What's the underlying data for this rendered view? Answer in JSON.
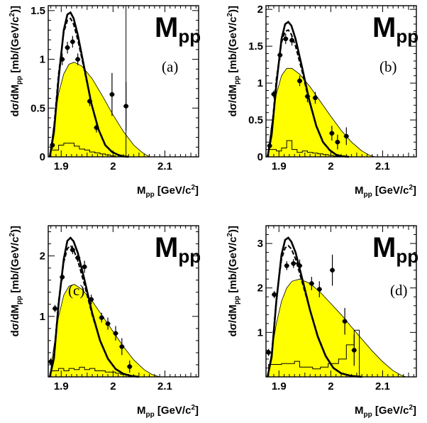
{
  "figure": {
    "panel_title_main": "M",
    "panel_title_sub": "pp",
    "xlabel_pre": "M",
    "xlabel_sub": "pp",
    "xlabel_post": " [GeV/c",
    "xlabel_sup": "2",
    "xlabel_end": "]",
    "ylabel_pre": "dσ/dM",
    "ylabel_sub": "pp",
    "ylabel_post": " [mb/(GeV/c",
    "ylabel_sup": "2",
    "ylabel_end": ")]",
    "colors": {
      "phase_space_fill": "#ffff00",
      "curves": "#000000",
      "background": "#ffffff"
    }
  },
  "chart_data": [
    {
      "type": "line",
      "panel_label": "(a)",
      "xlim": [
        1.875,
        2.165
      ],
      "ylim": [
        0,
        1.55
      ],
      "xticks": [
        1.9,
        2.0,
        2.1
      ],
      "xtick_labels": [
        "1.9",
        "2",
        "2.1"
      ],
      "yticks": [
        0,
        0.5,
        1,
        1.5
      ],
      "ytick_labels": [
        "0",
        "0.5",
        "1",
        "1.5"
      ],
      "vertical_line_x": 2.025,
      "series": [
        {
          "style": "solid",
          "x": [
            1.878,
            1.886,
            1.895,
            1.905,
            1.912,
            1.918,
            1.924,
            1.932,
            1.945,
            1.958,
            1.972,
            1.985,
            1.998,
            2.01,
            2.02,
            2.03
          ],
          "y": [
            0,
            0.25,
            0.8,
            1.3,
            1.46,
            1.48,
            1.42,
            1.25,
            0.9,
            0.55,
            0.28,
            0.12,
            0.05,
            0.02,
            0.005,
            0
          ]
        },
        {
          "style": "dashed",
          "x": [
            1.878,
            1.886,
            1.895,
            1.905,
            1.912,
            1.918,
            1.924,
            1.932,
            1.945,
            1.958,
            1.972,
            1.985,
            1.998,
            2.01,
            2.02,
            2.03
          ],
          "y": [
            0,
            0.3,
            0.85,
            1.28,
            1.4,
            1.42,
            1.36,
            1.2,
            0.88,
            0.55,
            0.28,
            0.12,
            0.05,
            0.02,
            0.005,
            0
          ]
        },
        {
          "style": "filled",
          "x": [
            1.878,
            1.885,
            1.895,
            1.905,
            1.915,
            1.925,
            1.94,
            1.96,
            1.98,
            2.0,
            2.02,
            2.04,
            2.055,
            2.065,
            2.072
          ],
          "y": [
            0,
            0.3,
            0.65,
            0.85,
            0.95,
            0.97,
            0.93,
            0.8,
            0.62,
            0.43,
            0.26,
            0.12,
            0.05,
            0.015,
            0
          ]
        }
      ],
      "points": [
        {
          "x": 1.883,
          "y": 0.12,
          "xerr": 0.005,
          "yerr": 0.04
        },
        {
          "x": 1.902,
          "y": 1.0,
          "xerr": 0.005,
          "yerr": 0.06
        },
        {
          "x": 1.912,
          "y": 1.12,
          "xerr": 0.005,
          "yerr": 0.06
        },
        {
          "x": 1.922,
          "y": 1.18,
          "xerr": 0.005,
          "yerr": 0.06
        },
        {
          "x": 1.932,
          "y": 1.0,
          "xerr": 0.005,
          "yerr": 0.06
        },
        {
          "x": 1.955,
          "y": 0.57,
          "xerr": 0.005,
          "yerr": 0.05
        },
        {
          "x": 1.968,
          "y": 0.3,
          "xerr": 0.005,
          "yerr": 0.05
        },
        {
          "x": 1.998,
          "y": 0.64,
          "xerr": 0.005,
          "yerr": 0.22
        },
        {
          "x": 2.025,
          "y": 0.52,
          "xerr": 0.005,
          "yerr": 0.25
        }
      ],
      "histogram": {
        "edges": [
          1.88,
          1.895,
          1.905,
          1.915,
          1.925,
          1.935,
          1.945,
          1.955,
          1.965,
          1.975,
          1.985,
          1.995,
          2.005,
          2.015
        ],
        "values": [
          0.07,
          0.12,
          0.14,
          0.14,
          0.11,
          0.08,
          0.07,
          0.05,
          0.04,
          0.03,
          0.02,
          0.01,
          0
        ]
      }
    },
    {
      "type": "line",
      "panel_label": "(b)",
      "xlim": [
        1.875,
        2.165
      ],
      "ylim": [
        0,
        2.05
      ],
      "xticks": [
        1.9,
        2.0,
        2.1
      ],
      "xtick_labels": [
        "1.9",
        "2",
        "2.1"
      ],
      "yticks": [
        0,
        0.5,
        1,
        1.5,
        2
      ],
      "ytick_labels": [
        "0",
        "0.5",
        "1",
        "1.5",
        "2"
      ],
      "series": [
        {
          "style": "solid",
          "x": [
            1.878,
            1.886,
            1.895,
            1.905,
            1.912,
            1.918,
            1.924,
            1.932,
            1.945,
            1.958,
            1.972,
            1.985,
            1.998,
            2.01,
            2.02,
            2.035
          ],
          "y": [
            0,
            0.3,
            0.98,
            1.6,
            1.8,
            1.83,
            1.78,
            1.6,
            1.2,
            0.78,
            0.42,
            0.2,
            0.09,
            0.03,
            0.01,
            0
          ]
        },
        {
          "style": "dashed",
          "x": [
            1.878,
            1.886,
            1.895,
            1.905,
            1.912,
            1.918,
            1.924,
            1.932,
            1.945,
            1.958,
            1.972,
            1.985,
            1.998,
            2.01,
            2.02,
            2.035
          ],
          "y": [
            0,
            0.35,
            1.05,
            1.55,
            1.7,
            1.72,
            1.66,
            1.5,
            1.15,
            0.76,
            0.42,
            0.2,
            0.09,
            0.03,
            0.01,
            0
          ]
        },
        {
          "style": "filled",
          "x": [
            1.878,
            1.885,
            1.895,
            1.905,
            1.915,
            1.925,
            1.94,
            1.96,
            1.98,
            2.0,
            2.02,
            2.04,
            2.06,
            2.075,
            2.085
          ],
          "y": [
            0,
            0.4,
            0.85,
            1.1,
            1.2,
            1.2,
            1.12,
            0.95,
            0.75,
            0.55,
            0.36,
            0.2,
            0.08,
            0.02,
            0
          ]
        }
      ],
      "points": [
        {
          "x": 1.882,
          "y": 0.15,
          "xerr": 0.005,
          "yerr": 0.05
        },
        {
          "x": 1.89,
          "y": 0.85,
          "xerr": 0.005,
          "yerr": 0.05
        },
        {
          "x": 1.902,
          "y": 1.38,
          "xerr": 0.005,
          "yerr": 0.07
        },
        {
          "x": 1.913,
          "y": 1.6,
          "xerr": 0.005,
          "yerr": 0.07
        },
        {
          "x": 1.925,
          "y": 1.58,
          "xerr": 0.005,
          "yerr": 0.07
        },
        {
          "x": 1.94,
          "y": 1.03,
          "xerr": 0.005,
          "yerr": 0.07
        },
        {
          "x": 1.955,
          "y": 0.82,
          "xerr": 0.005,
          "yerr": 0.08
        },
        {
          "x": 1.97,
          "y": 0.8,
          "xerr": 0.005,
          "yerr": 0.08
        },
        {
          "x": 2.002,
          "y": 0.32,
          "xerr": 0.005,
          "yerr": 0.1
        },
        {
          "x": 2.013,
          "y": 0.2,
          "xerr": 0.005,
          "yerr": 0.1
        },
        {
          "x": 2.03,
          "y": 0.28,
          "xerr": 0.005,
          "yerr": 0.12
        }
      ],
      "histogram": {
        "edges": [
          1.88,
          1.895,
          1.905,
          1.915,
          1.925,
          1.935,
          1.945,
          1.955,
          1.965,
          1.975,
          1.985,
          1.995,
          2.005,
          2.015,
          2.025
        ],
        "values": [
          0.1,
          0.08,
          0.12,
          0.22,
          0.1,
          0.06,
          0.08,
          0.06,
          0.05,
          0.04,
          0.03,
          0.02,
          0.01,
          0
        ]
      }
    },
    {
      "type": "line",
      "panel_label": "(c)",
      "xlim": [
        1.875,
        2.165
      ],
      "ylim": [
        0,
        2.5
      ],
      "xticks": [
        1.9,
        2.0,
        2.1
      ],
      "xtick_labels": [
        "1.9",
        "2",
        "2.1"
      ],
      "yticks": [
        1,
        2
      ],
      "ytick_labels": [
        "1",
        "2"
      ],
      "series": [
        {
          "style": "solid",
          "x": [
            1.878,
            1.886,
            1.895,
            1.905,
            1.912,
            1.918,
            1.924,
            1.932,
            1.945,
            1.96,
            1.975,
            1.99,
            2.005,
            2.02,
            2.035,
            2.05
          ],
          "y": [
            0,
            0.3,
            1.2,
            1.95,
            2.25,
            2.3,
            2.24,
            2.05,
            1.6,
            1.05,
            0.6,
            0.3,
            0.13,
            0.05,
            0.015,
            0
          ]
        },
        {
          "style": "dashed",
          "x": [
            1.878,
            1.886,
            1.895,
            1.905,
            1.912,
            1.918,
            1.924,
            1.932,
            1.945,
            1.96,
            1.975,
            1.99,
            2.005,
            2.02,
            2.035,
            2.05
          ],
          "y": [
            0,
            0.35,
            1.25,
            1.9,
            2.12,
            2.17,
            2.1,
            1.92,
            1.52,
            1.02,
            0.6,
            0.3,
            0.13,
            0.05,
            0.015,
            0
          ]
        },
        {
          "style": "filled",
          "x": [
            1.878,
            1.885,
            1.895,
            1.905,
            1.915,
            1.925,
            1.94,
            1.96,
            1.98,
            2.0,
            2.02,
            2.04,
            2.06,
            2.075,
            2.09
          ],
          "y": [
            0,
            0.45,
            1.0,
            1.35,
            1.5,
            1.53,
            1.45,
            1.25,
            1.0,
            0.75,
            0.5,
            0.28,
            0.12,
            0.04,
            0
          ]
        }
      ],
      "points": [
        {
          "x": 1.88,
          "y": 0.25,
          "xerr": 0.005,
          "yerr": 0.06
        },
        {
          "x": 1.888,
          "y": 1.13,
          "xerr": 0.005,
          "yerr": 0.06
        },
        {
          "x": 1.902,
          "y": 1.65,
          "xerr": 0.005,
          "yerr": 0.06
        },
        {
          "x": 1.922,
          "y": 2.1,
          "xerr": 0.005,
          "yerr": 0.07
        },
        {
          "x": 1.932,
          "y": 1.97,
          "xerr": 0.005,
          "yerr": 0.07
        },
        {
          "x": 1.945,
          "y": 1.82,
          "xerr": 0.005,
          "yerr": 0.1
        },
        {
          "x": 1.958,
          "y": 1.28,
          "xerr": 0.005,
          "yerr": 0.08
        },
        {
          "x": 1.978,
          "y": 0.98,
          "xerr": 0.005,
          "yerr": 0.08
        },
        {
          "x": 1.99,
          "y": 0.88,
          "xerr": 0.005,
          "yerr": 0.1
        },
        {
          "x": 2.005,
          "y": 0.72,
          "xerr": 0.005,
          "yerr": 0.12
        },
        {
          "x": 2.017,
          "y": 0.5,
          "xerr": 0.005,
          "yerr": 0.14
        },
        {
          "x": 2.032,
          "y": 0.17,
          "xerr": 0.005,
          "yerr": 0.1
        }
      ],
      "histogram": {
        "edges": [
          1.88,
          1.895,
          1.905,
          1.915,
          1.925,
          1.935,
          1.945,
          1.955,
          1.965,
          1.975,
          1.985,
          1.995,
          2.005,
          2.015,
          2.025,
          2.035
        ],
        "values": [
          0.1,
          0.14,
          0.1,
          0.14,
          0.12,
          0.16,
          0.12,
          0.14,
          0.1,
          0.1,
          0.08,
          0.08,
          0.06,
          0.04,
          0
        ]
      }
    },
    {
      "type": "line",
      "panel_label": "(d)",
      "xlim": [
        1.875,
        2.165
      ],
      "ylim": [
        0,
        3.4
      ],
      "xticks": [
        1.9,
        2.0,
        2.1
      ],
      "xtick_labels": [
        "1.9",
        "2",
        "2.1"
      ],
      "yticks": [
        1,
        2,
        3
      ],
      "ytick_labels": [
        "1",
        "2",
        "3"
      ],
      "series": [
        {
          "style": "solid",
          "x": [
            1.878,
            1.886,
            1.895,
            1.905,
            1.912,
            1.918,
            1.924,
            1.932,
            1.945,
            1.96,
            1.975,
            1.99,
            2.005,
            2.02,
            2.04,
            2.06
          ],
          "y": [
            0,
            0.45,
            1.7,
            2.75,
            3.08,
            3.13,
            3.04,
            2.8,
            2.2,
            1.5,
            0.9,
            0.47,
            0.2,
            0.08,
            0.02,
            0
          ]
        },
        {
          "style": "dashed",
          "x": [
            1.878,
            1.886,
            1.895,
            1.905,
            1.912,
            1.918,
            1.924,
            1.932,
            1.945,
            1.96,
            1.975,
            1.99,
            2.005,
            2.02,
            2.04,
            2.06
          ],
          "y": [
            0,
            0.5,
            1.75,
            2.65,
            2.9,
            2.95,
            2.88,
            2.65,
            2.12,
            1.5,
            0.92,
            0.48,
            0.2,
            0.08,
            0.02,
            0
          ]
        },
        {
          "style": "filled",
          "x": [
            1.878,
            1.885,
            1.895,
            1.905,
            1.915,
            1.925,
            1.94,
            1.96,
            1.98,
            2.0,
            2.02,
            2.04,
            2.06,
            2.08,
            2.1,
            2.12,
            2.135,
            2.145
          ],
          "y": [
            0,
            0.5,
            1.2,
            1.7,
            2.0,
            2.15,
            2.2,
            2.1,
            1.9,
            1.65,
            1.4,
            1.12,
            0.85,
            0.58,
            0.34,
            0.14,
            0.04,
            0
          ]
        }
      ],
      "points": [
        {
          "x": 1.88,
          "y": 0.55,
          "xerr": 0.005,
          "yerr": 0.08
        },
        {
          "x": 1.891,
          "y": 1.85,
          "xerr": 0.005,
          "yerr": 0.08
        },
        {
          "x": 1.915,
          "y": 2.5,
          "xerr": 0.005,
          "yerr": 0.1
        },
        {
          "x": 1.928,
          "y": 2.55,
          "xerr": 0.005,
          "yerr": 0.1
        },
        {
          "x": 1.94,
          "y": 2.5,
          "xerr": 0.005,
          "yerr": 0.14
        },
        {
          "x": 1.963,
          "y": 2.1,
          "xerr": 0.005,
          "yerr": 0.15
        },
        {
          "x": 1.978,
          "y": 1.97,
          "xerr": 0.005,
          "yerr": 0.18
        },
        {
          "x": 2.003,
          "y": 2.4,
          "xerr": 0.005,
          "yerr": 0.35
        },
        {
          "x": 2.027,
          "y": 1.25,
          "xerr": 0.005,
          "yerr": 0.3
        },
        {
          "x": 2.045,
          "y": 0.6,
          "xerr": 0.005,
          "yerr": 0.35
        }
      ],
      "histogram": {
        "edges": [
          1.88,
          1.905,
          1.93,
          1.94,
          1.955,
          1.965,
          1.98,
          1.995,
          2.015,
          2.03,
          2.045,
          2.055
        ],
        "values": [
          0.28,
          0.3,
          0.35,
          0.22,
          0.22,
          0.18,
          0.22,
          0.3,
          0.4,
          0.72,
          1.05
        ]
      }
    }
  ]
}
